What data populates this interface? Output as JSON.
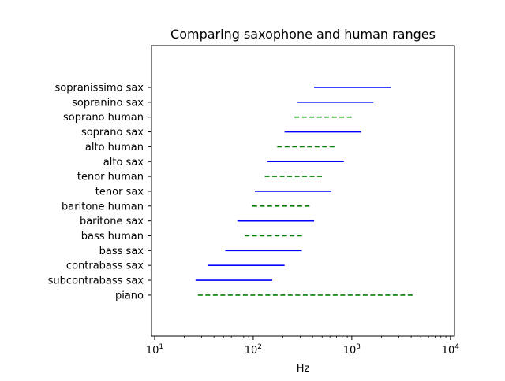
{
  "chart_data": {
    "type": "range",
    "title": "Comparing saxophone and human ranges",
    "xlabel": "Hz",
    "ylabel": "",
    "xscale": "log",
    "xlim": [
      9.3,
      11000
    ],
    "x_ticks": [
      {
        "value": 10,
        "base": "10",
        "exp": "1"
      },
      {
        "value": 100,
        "base": "10",
        "exp": "2"
      },
      {
        "value": 1000,
        "base": "10",
        "exp": "3"
      },
      {
        "value": 10000,
        "base": "10",
        "exp": "4"
      }
    ],
    "grid": false,
    "legend": "none",
    "ranges": [
      {
        "label": "sopranissimo sax",
        "low": 415,
        "high": 2490,
        "kind": "sax"
      },
      {
        "label": "sopranino sax",
        "low": 277,
        "high": 1660,
        "kind": "sax"
      },
      {
        "label": "soprano human",
        "low": 262,
        "high": 1047,
        "kind": "human"
      },
      {
        "label": "soprano sax",
        "low": 208,
        "high": 1245,
        "kind": "sax"
      },
      {
        "label": "alto human",
        "low": 175,
        "high": 698,
        "kind": "human"
      },
      {
        "label": "alto sax",
        "low": 139,
        "high": 830,
        "kind": "sax"
      },
      {
        "label": "tenor human",
        "low": 131,
        "high": 523,
        "kind": "human"
      },
      {
        "label": "tenor sax",
        "low": 104,
        "high": 622,
        "kind": "sax"
      },
      {
        "label": "baritone human",
        "low": 98,
        "high": 392,
        "kind": "human"
      },
      {
        "label": "baritone sax",
        "low": 69,
        "high": 415,
        "kind": "sax"
      },
      {
        "label": "bass human",
        "low": 82,
        "high": 330,
        "kind": "human"
      },
      {
        "label": "bass sax",
        "low": 52,
        "high": 311,
        "kind": "sax"
      },
      {
        "label": "contrabass sax",
        "low": 35,
        "high": 208,
        "kind": "sax"
      },
      {
        "label": "subcontrabass sax",
        "low": 26,
        "high": 156,
        "kind": "sax"
      },
      {
        "label": "piano",
        "low": 27.5,
        "high": 4186,
        "kind": "human"
      }
    ],
    "colors": {
      "sax": "#0000ff",
      "human": "#008000"
    },
    "line_styles": {
      "sax": "solid",
      "human": "dashed"
    }
  }
}
